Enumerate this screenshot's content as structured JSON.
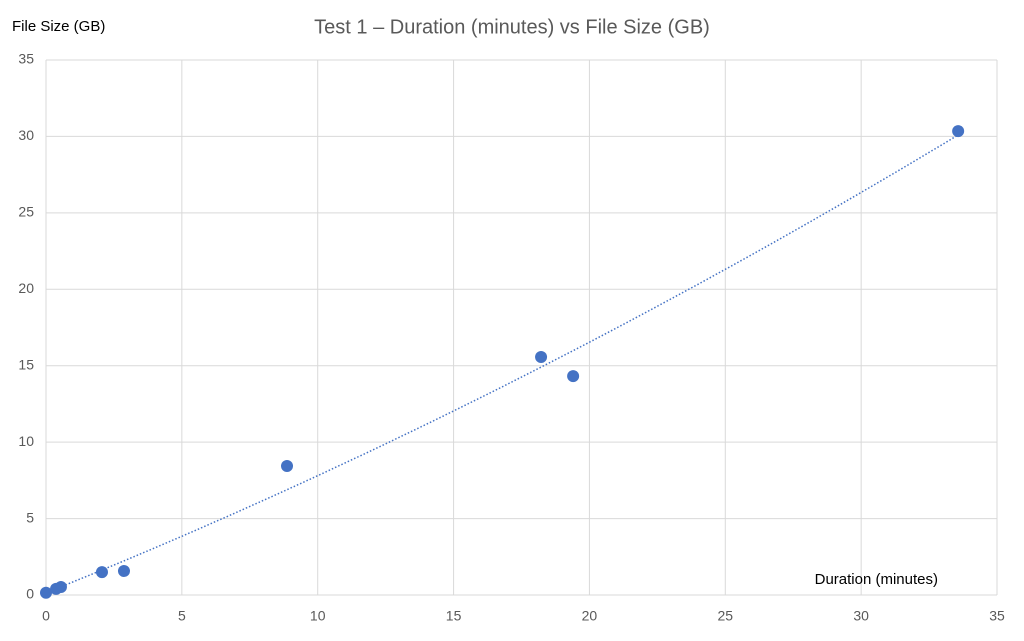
{
  "chart_data": {
    "type": "scatter",
    "title": "Test 1 – Duration (minutes) vs File Size (GB)",
    "x_label": "Duration (minutes)",
    "y_label": "File Size (GB)",
    "series": [
      {
        "name": "File Size (GB)",
        "color": "#4472c4",
        "x": [
          0,
          0.37,
          0.55,
          2.06,
          2.87,
          8.87,
          18.22,
          19.4,
          33.57
        ],
        "values": [
          0.15,
          0.4,
          0.52,
          1.5,
          1.57,
          8.44,
          15.57,
          14.32,
          30.35
        ]
      }
    ],
    "xlim": [
      0,
      35
    ],
    "xticks": [
      0,
      5,
      10,
      15,
      20,
      25,
      30,
      35
    ],
    "ylim": [
      0,
      35
    ],
    "yticks": [
      0,
      5,
      10,
      15,
      20,
      25,
      30,
      35
    ],
    "grid": true,
    "trendline": "polynomial"
  }
}
